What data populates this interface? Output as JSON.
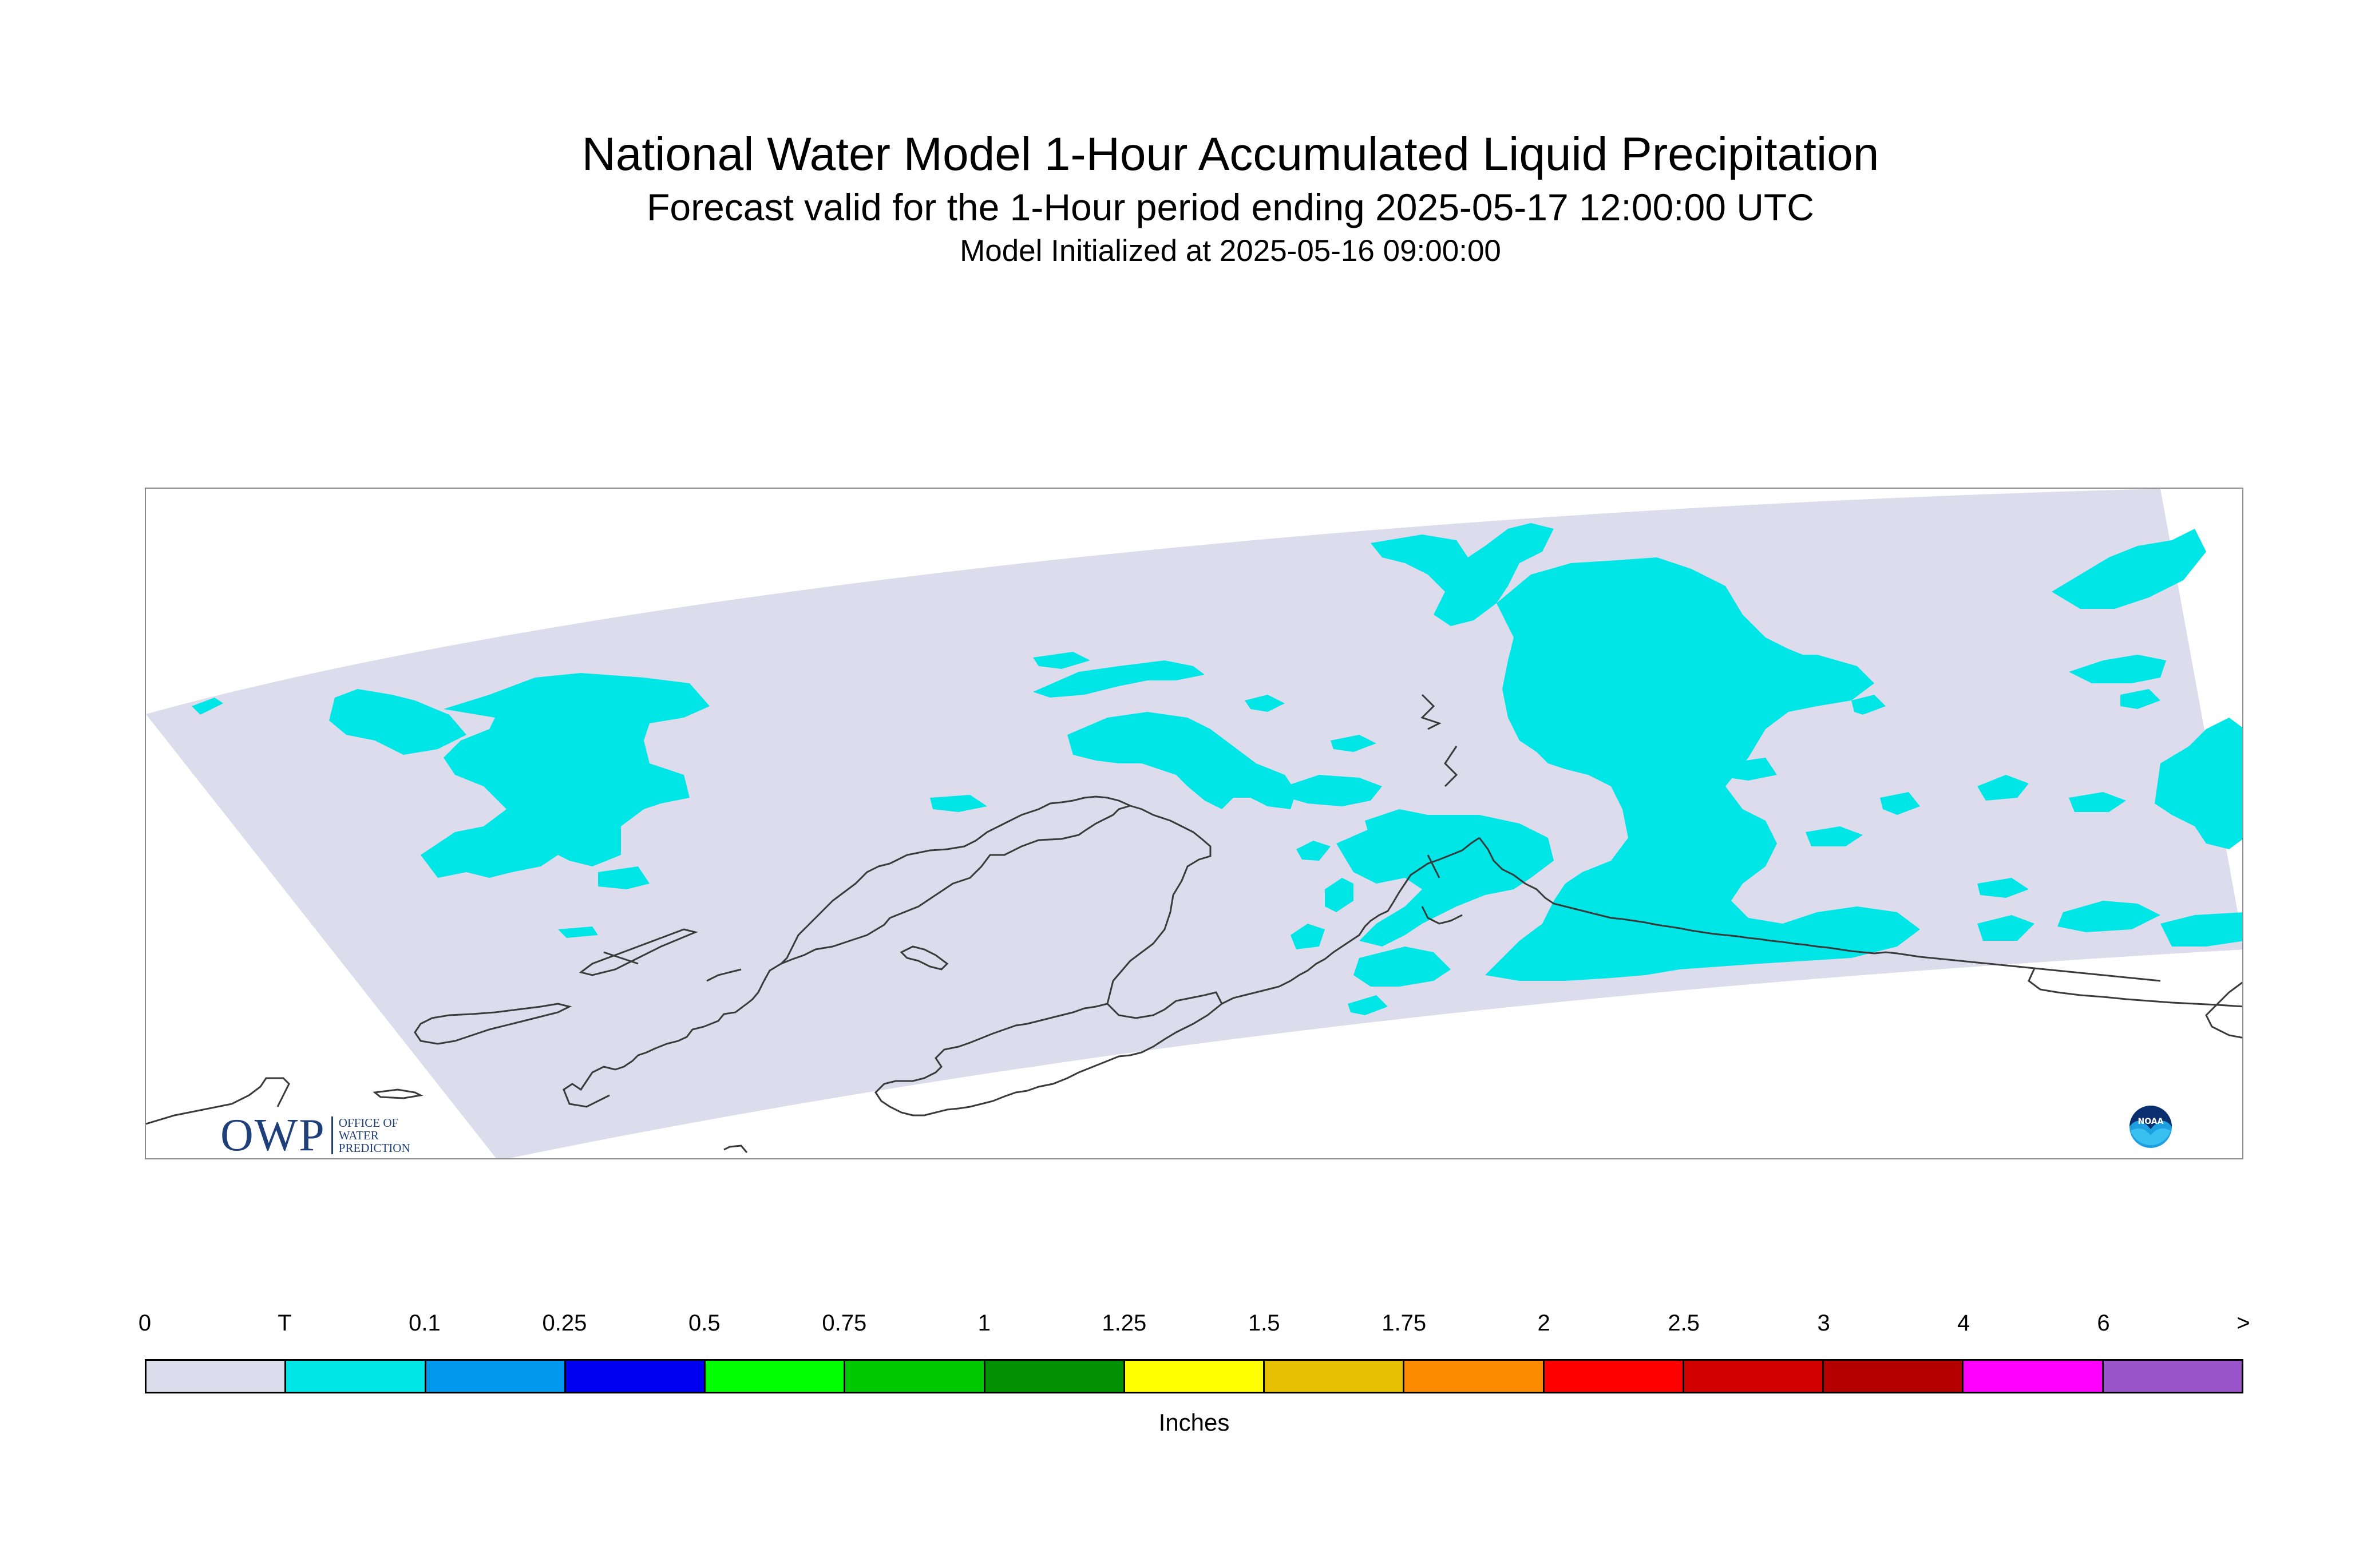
{
  "title": {
    "main": "National Water Model 1-Hour Accumulated Liquid Precipitation",
    "sub": "Forecast valid for the 1-Hour period ending 2025-05-17 12:00:00 UTC",
    "init": "Model Initialized at 2025-05-16 09:00:00"
  },
  "map": {
    "domain_fill_color": "#dcdcec",
    "precip_fill_color": "#00e6e6",
    "coastline_color": "#3a3a3a",
    "owp_logo": {
      "letters": "OWP",
      "line1": "OFFICE OF",
      "line2": "WATER",
      "line3": "PREDICTION",
      "color": "#1f3f78"
    },
    "noaa_logo": {
      "icon": "noaa-seal-icon",
      "text": "NOAA"
    }
  },
  "legend": {
    "ticks": [
      "0",
      "T",
      "0.1",
      "0.25",
      "0.5",
      "0.75",
      "1",
      "1.25",
      "1.5",
      "1.75",
      "2",
      "2.5",
      "3",
      "4",
      "6",
      ">"
    ],
    "colors": [
      "#dcdcec",
      "#00e6e6",
      "#0099ee",
      "#0000f0",
      "#00ff00",
      "#00c800",
      "#009000",
      "#ffff00",
      "#e6c000",
      "#ff8c00",
      "#ff0000",
      "#d20000",
      "#b40000",
      "#ff00ff",
      "#9955c9"
    ],
    "units": "Inches"
  }
}
